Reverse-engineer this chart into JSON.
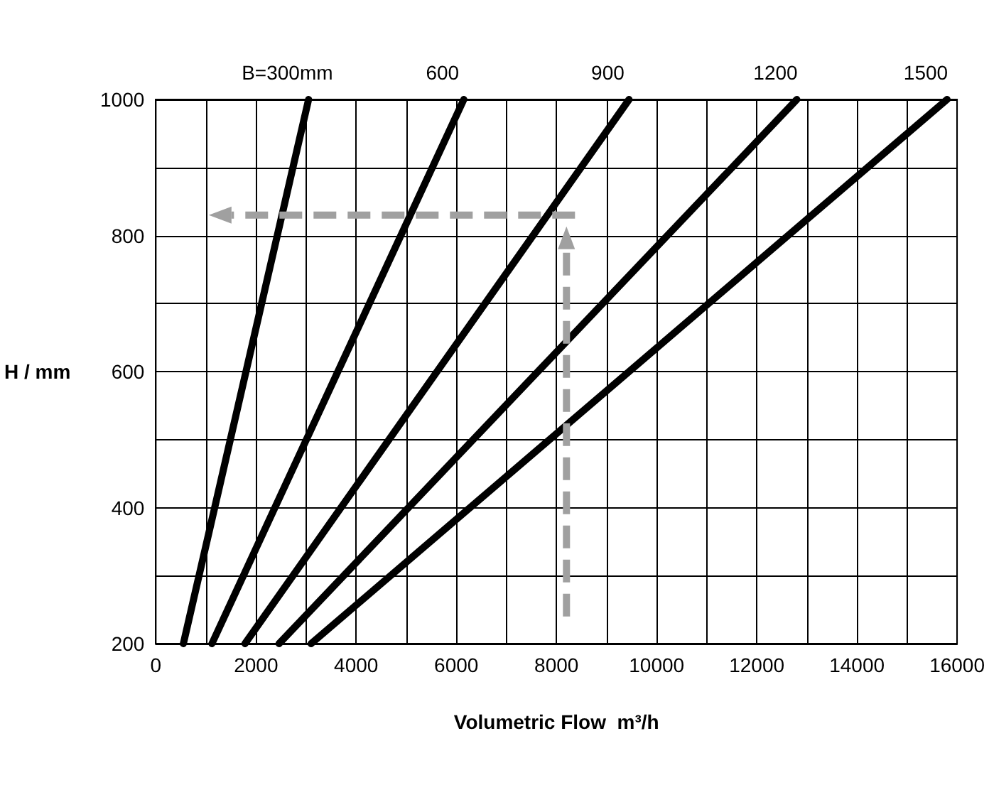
{
  "chart_data": {
    "type": "line",
    "xlabel": "Volumetric Flow  m³/h",
    "ylabel": "H / mm",
    "series": [
      {
        "name": "B=300mm",
        "color": "#000000",
        "x": [
          550,
          3050
        ],
        "values": [
          200,
          1000
        ]
      },
      {
        "name": "600",
        "color": "#000000",
        "x": [
          1120,
          6150
        ],
        "values": [
          200,
          1000
        ]
      },
      {
        "name": "900",
        "color": "#000000",
        "x": [
          1780,
          9450
        ],
        "values": [
          200,
          1000
        ]
      },
      {
        "name": "1200",
        "color": "#000000",
        "x": [
          2460,
          12800
        ],
        "values": [
          200,
          1000
        ]
      },
      {
        "name": "1500",
        "color": "#000000",
        "x": [
          3100,
          15800
        ],
        "values": [
          200,
          1000
        ]
      }
    ],
    "xlim": [
      0,
      16000
    ],
    "ylim": [
      200,
      1000
    ],
    "xticks": [
      0,
      {
        "value": 1000,
        "label": null
      },
      2000,
      {
        "value": 3000,
        "label": null
      },
      4000,
      {
        "value": 5000,
        "label": null
      },
      6000,
      {
        "value": 7000,
        "label": null
      },
      8000,
      {
        "value": 9000,
        "label": null
      },
      10000,
      {
        "value": 11000,
        "label": null
      },
      12000,
      {
        "value": 13000,
        "label": null
      },
      14000,
      {
        "value": 15000,
        "label": null
      },
      16000
    ],
    "yticks": [
      200,
      {
        "value": 300,
        "label": null
      },
      400,
      {
        "value": 500,
        "label": null
      },
      600,
      {
        "value": 700,
        "label": null
      },
      800,
      {
        "value": 900,
        "label": null
      },
      1000
    ],
    "grid": true,
    "legend": false,
    "marker": "none",
    "line_style": "solid"
  }
}
